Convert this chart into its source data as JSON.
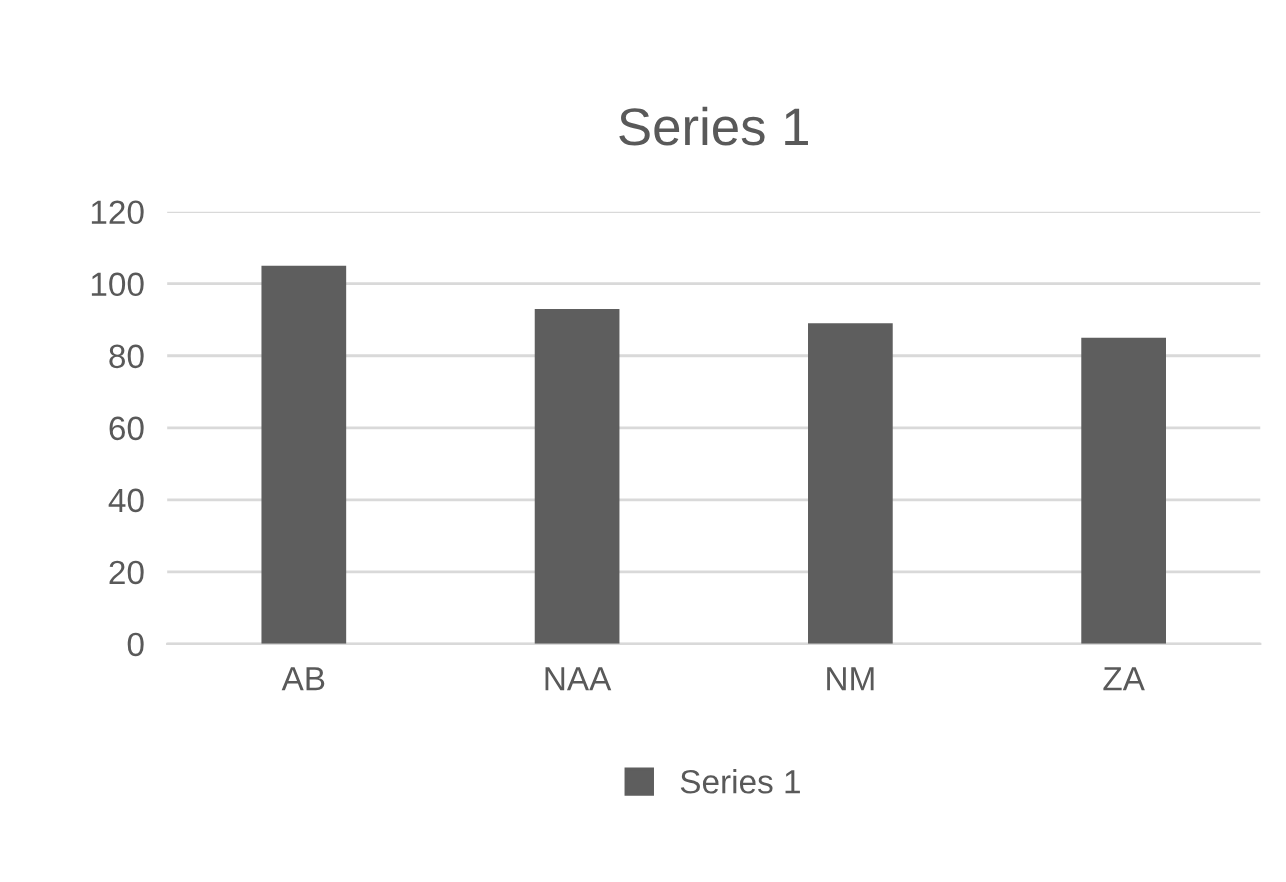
{
  "chart_data": {
    "type": "bar",
    "title": "Series 1",
    "categories": [
      "AB",
      "NAA",
      "NM",
      "ZA"
    ],
    "series": [
      {
        "name": "Series 1",
        "color": "#5e5e5e",
        "values": [
          105,
          93,
          89,
          85
        ]
      }
    ],
    "ylim": [
      0,
      120
    ],
    "yticks": [
      0,
      20,
      40,
      60,
      80,
      100,
      120
    ],
    "grid": "y",
    "legend": "bottom"
  }
}
